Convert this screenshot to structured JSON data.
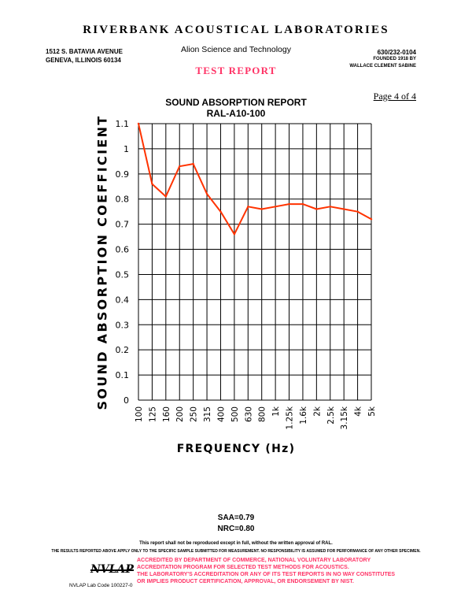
{
  "header": {
    "lab_name": "RIVERBANK ACOUSTICAL LABORATORIES",
    "address_line1": "1512 S. BATAVIA AVENUE",
    "address_line2": "GENEVA, ILLINOIS 60134",
    "organization": "Alion Science and Technology",
    "phone": "630/232-0104",
    "founded_line1": "FOUNDED 1918 BY",
    "founded_line2": "WALLACE CLEMENT SABINE",
    "test_report": "TEST REPORT",
    "page": "Page 4 of 4"
  },
  "chart_data": {
    "type": "line",
    "title": "SOUND ABSORPTION REPORT",
    "subtitle": "RAL-A10-100",
    "xlabel": "FREQUENCY (Hz)",
    "ylabel": "SOUND ABSORPTION COEFFICIENT",
    "categories": [
      "100",
      "125",
      "160",
      "200",
      "250",
      "315",
      "400",
      "500",
      "630",
      "800",
      "1k",
      "1.25k",
      "1.6k",
      "2k",
      "2.5k",
      "3.15k",
      "4k",
      "5k"
    ],
    "yticks": [
      "0",
      "0.1",
      "0.2",
      "0.3",
      "0.4",
      "0.5",
      "0.6",
      "0.7",
      "0.8",
      "0.9",
      "1",
      "1.1"
    ],
    "ylim": [
      0,
      1.1
    ],
    "grid": true,
    "series": [
      {
        "values": [
          1.1,
          0.86,
          0.81,
          0.93,
          0.94,
          0.82,
          0.75,
          0.66,
          0.77,
          0.76,
          0.77,
          0.78,
          0.78,
          0.76,
          0.77,
          0.76,
          0.75,
          0.72
        ],
        "color": "#ff3300"
      }
    ]
  },
  "summary": {
    "saa": "SAA=0.79",
    "nrc": "NRC=0.80"
  },
  "footer": {
    "reproduction_notice": "This report shall not be reproduced except in full, without the written approval of RAL.",
    "results_notice": "THE RESULTS REPORTED ABOVE APPLY ONLY TO THE SPECIFIC SAMPLE SUBMITTED FOR MEASUREMENT. NO RESPONSIBILITY IS ASSUMED FOR PERFORMANCE OF ANY OTHER SPECIMEN.",
    "accreditation_line1": "ACCREDITED BY DEPARTMENT OF COMMERCE, NATIONAL VOLUNTARY LABORATORY",
    "accreditation_line2": "ACCREDITATION PROGRAM FOR SELECTED TEST METHODS FOR ACOUSTICS.",
    "accreditation_line3": "THE LABORATORY'S ACCREDITATION OR ANY OF ITS TEST REPORTS IN NO WAY CONSTITUTES",
    "accreditation_line4": "OR IMPLIES PRODUCT CERTIFICATION, APPROVAL, OR ENDORSEMENT BY NIST.",
    "nvlap_logo": "NVLAP",
    "lab_code": "NVLAP Lab Code 100227-0"
  }
}
